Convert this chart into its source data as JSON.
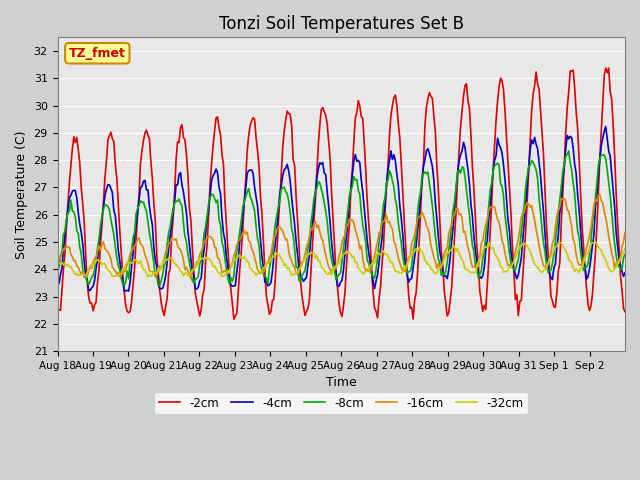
{
  "title": "Tonzi Soil Temperatures Set B",
  "xlabel": "Time",
  "ylabel": "Soil Temperature (C)",
  "ylim": [
    21.0,
    32.5
  ],
  "yticks": [
    21.0,
    22.0,
    23.0,
    24.0,
    25.0,
    26.0,
    27.0,
    28.0,
    29.0,
    30.0,
    31.0,
    32.0
  ],
  "series_colors": [
    "#dd0000",
    "#0000cc",
    "#00aa00",
    "#dd8800",
    "#cccc00"
  ],
  "series_labels": [
    "-2cm",
    "-4cm",
    "-8cm",
    "-16cm",
    "-32cm"
  ],
  "plot_bg_color": "#e8e8e8",
  "fig_bg_color": "#d0d0d0",
  "annotation_text": "TZ_fmet",
  "annotation_bg": "#ffff99",
  "annotation_border": "#cc8800",
  "annotation_text_color": "#cc0000",
  "n_days": 16,
  "pts_per_day": 24,
  "xtick_labels": [
    "Aug 18",
    "Aug 19",
    "Aug 20",
    "Aug 21",
    "Aug 22",
    "Aug 23",
    "Aug 24",
    "Aug 25",
    "Aug 26",
    "Aug 27",
    "Aug 28",
    "Aug 29",
    "Aug 30",
    "Aug 31",
    "Sep 1",
    "Sep 2"
  ],
  "line_width": 1.2
}
